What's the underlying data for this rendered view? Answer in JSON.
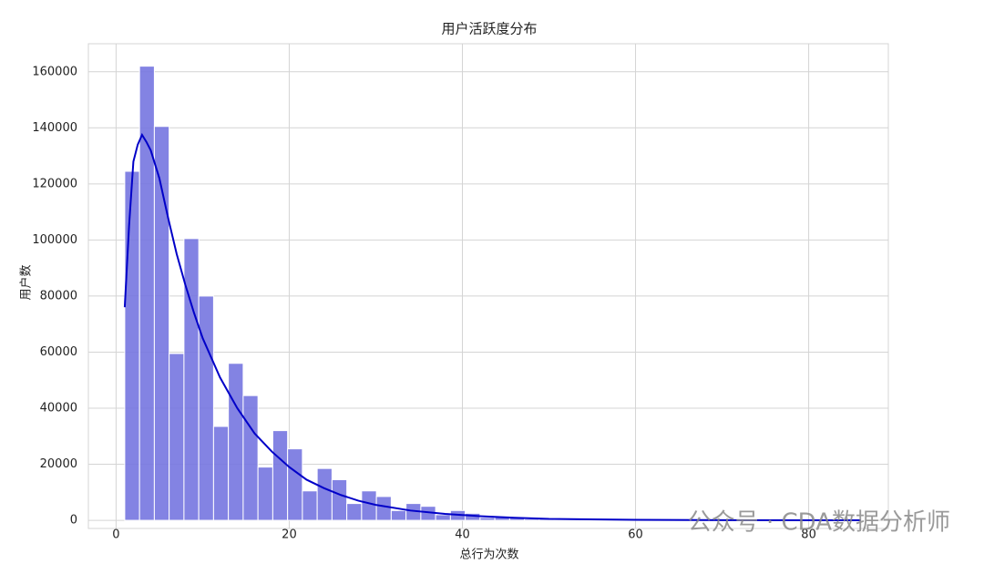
{
  "chart_data": {
    "type": "histogram",
    "title": "用户活跃度分布",
    "xlabel": "总行为次数",
    "ylabel": "用户数",
    "bins": [
      1,
      2.71,
      4.42,
      6.13,
      7.84,
      9.55,
      11.26,
      12.97,
      14.68,
      16.39,
      18.1,
      19.81,
      21.52,
      23.23,
      24.94,
      26.65,
      28.36,
      30.07,
      31.78,
      33.49,
      35.2,
      36.91,
      38.62,
      40.33,
      42.04,
      43.75,
      45.46,
      47.17,
      48.88,
      50.59,
      52.3,
      54.01,
      55.72,
      57.43,
      59.14,
      60.85,
      62.56,
      64.27,
      65.98,
      67.69,
      69.4,
      71.11,
      72.82,
      74.53,
      76.24,
      77.95,
      79.66,
      81.37,
      83.08,
      84.79,
      86.5
    ],
    "counts": [
      124500,
      162000,
      140500,
      59500,
      100500,
      80000,
      33500,
      56000,
      44500,
      19000,
      32000,
      25500,
      10500,
      18500,
      14500,
      6000,
      10500,
      8500,
      3500,
      6000,
      5000,
      2000,
      3500,
      2500,
      1000,
      1500,
      1200,
      500,
      700,
      300,
      400,
      200,
      150,
      100,
      80,
      60,
      50,
      40,
      30,
      20,
      20,
      10,
      10,
      10,
      10,
      5,
      5,
      5,
      5,
      5
    ],
    "color": "#7676e0",
    "kde": {
      "color": "#0000c8",
      "x": [
        1,
        1.5,
        2,
        2.5,
        3,
        3.5,
        4,
        5,
        6,
        7,
        8,
        9,
        10,
        12,
        14,
        16,
        18,
        20,
        22,
        24,
        26,
        28,
        30,
        34,
        38,
        42,
        46,
        50,
        60,
        70,
        80,
        86
      ],
      "values": [
        76000,
        105000,
        128000,
        134000,
        137500,
        135000,
        132000,
        122000,
        108000,
        95000,
        84000,
        74000,
        65000,
        51000,
        40000,
        31000,
        24500,
        19000,
        14500,
        11500,
        9000,
        7000,
        5500,
        3500,
        2300,
        1500,
        900,
        500,
        200,
        80,
        30,
        10
      ]
    },
    "xlim": [
      -3.2,
      89.2
    ],
    "ylim": [
      -2900,
      170000
    ],
    "xticks": [
      0,
      20,
      40,
      60,
      80
    ],
    "yticks": [
      0,
      20000,
      40000,
      60000,
      80000,
      100000,
      120000,
      140000,
      160000
    ],
    "grid": true,
    "watermark": "公众号 · CDA数据分析师"
  }
}
